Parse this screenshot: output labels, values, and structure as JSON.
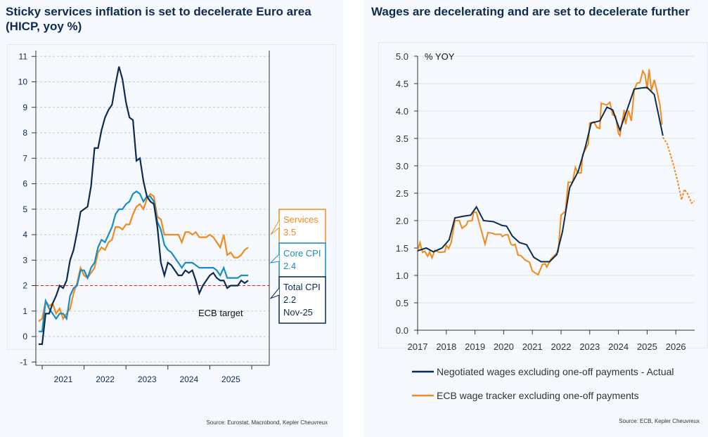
{
  "left": {
    "title": "Sticky services inflation is set to decelerate Euro area (HICP, yoy %)",
    "source": "Source: Eurostat, Macrobond,  Kepler Cheuvreux",
    "chart_data": {
      "type": "line",
      "title": "Sticky services inflation is set to decelerate Euro area (HICP, yoy %)",
      "x_start": "Nov-20",
      "x_end": "Nov-25",
      "frequency": "monthly",
      "ylim": [
        -1,
        11
      ],
      "yticks": [
        "-1",
        "0",
        "1",
        "2",
        "3",
        "4",
        "5",
        "6",
        "7",
        "8",
        "9",
        "10",
        "11"
      ],
      "xticks": [
        "2021",
        "2022",
        "2023",
        "2024",
        "2025"
      ],
      "grid": true,
      "reference_line": {
        "value": 2,
        "label": "ECB target",
        "color": "#e02020"
      },
      "series": [
        {
          "name": "Total CPI",
          "color": "#0d2b4e",
          "label": "Total CPI",
          "value_label": "2.2",
          "date_label": "Nov-25",
          "values": [
            -0.3,
            -0.3,
            0.9,
            0.9,
            1.3,
            1.6,
            2.0,
            1.9,
            2.2,
            3.0,
            3.4,
            4.1,
            4.9,
            5.0,
            5.1,
            5.9,
            7.4,
            7.4,
            8.1,
            8.6,
            8.9,
            9.1,
            9.9,
            10.6,
            10.1,
            9.2,
            8.6,
            8.5,
            6.9,
            7.0,
            6.1,
            5.5,
            5.3,
            5.2,
            4.3,
            2.9,
            2.4,
            2.9,
            2.8,
            2.6,
            2.4,
            2.4,
            2.6,
            2.5,
            2.6,
            2.2,
            1.7,
            2.0,
            2.2,
            2.4,
            2.5,
            2.3,
            2.2,
            2.2,
            1.9,
            2.0,
            2.0,
            2.0,
            2.2,
            2.1,
            2.2
          ]
        },
        {
          "name": "Core CPI",
          "color": "#1a8cc4",
          "label": "Core CPI",
          "value_label": "2.4",
          "values": [
            0.2,
            0.2,
            1.4,
            1.1,
            0.9,
            0.7,
            0.9,
            0.9,
            0.7,
            1.6,
            1.9,
            2.0,
            2.6,
            2.6,
            2.3,
            2.7,
            2.9,
            3.5,
            3.8,
            3.7,
            4.0,
            4.3,
            4.8,
            5.0,
            5.0,
            5.2,
            5.3,
            5.6,
            5.7,
            5.6,
            5.3,
            5.5,
            5.5,
            5.3,
            4.5,
            4.2,
            3.6,
            3.4,
            3.3,
            3.1,
            2.9,
            2.7,
            2.9,
            2.9,
            2.9,
            2.8,
            2.7,
            2.7,
            2.7,
            2.7,
            2.7,
            2.6,
            2.4,
            2.7,
            2.3,
            2.3,
            2.3,
            2.3,
            2.4,
            2.4,
            2.4
          ]
        },
        {
          "name": "Services",
          "color": "#f08a1c",
          "label": "Services",
          "value_label": "3.5",
          "values": [
            0.6,
            0.7,
            1.4,
            1.2,
            1.3,
            0.9,
            1.1,
            0.7,
            0.9,
            1.1,
            1.7,
            2.1,
            2.7,
            2.4,
            2.3,
            2.5,
            2.7,
            3.3,
            3.5,
            3.4,
            3.7,
            3.8,
            4.3,
            4.3,
            4.2,
            4.4,
            4.4,
            4.8,
            5.1,
            5.2,
            5.0,
            5.4,
            5.6,
            5.5,
            4.7,
            4.6,
            4.0,
            4.0,
            4.0,
            4.0,
            4.0,
            3.7,
            4.1,
            4.1,
            4.0,
            4.1,
            3.9,
            3.9,
            3.9,
            4.0,
            3.9,
            3.7,
            3.5,
            4.0,
            3.2,
            3.3,
            3.1,
            3.1,
            3.2,
            3.4,
            3.5
          ]
        }
      ]
    }
  },
  "right": {
    "title": "Wages are decelerating and are set to decelerate further",
    "source": "Source: ECB, Kepler Cheuvreux",
    "chart_data": {
      "type": "line",
      "title": "Wages are decelerating and are set to decelerate further",
      "ylabel": "% YOY",
      "ylim": [
        0,
        5
      ],
      "yticks": [
        "0.0",
        "0.5",
        "1.0",
        "1.5",
        "2.0",
        "2.5",
        "3.0",
        "3.5",
        "4.0",
        "4.5",
        "5.0"
      ],
      "xticks": [
        "2017",
        "2018",
        "2019",
        "2020",
        "2021",
        "2022",
        "2023",
        "2024",
        "2025",
        "2026"
      ],
      "xlim": [
        2017,
        2026.65
      ],
      "grid": true,
      "legend": "bottom",
      "series": [
        {
          "name": "Negotiated wages excluding one-off payments - Actual",
          "color": "#0d2b4e",
          "points": [
            [
              2017.0,
              1.45
            ],
            [
              2017.3,
              1.5
            ],
            [
              2017.55,
              1.43
            ],
            [
              2017.85,
              1.5
            ],
            [
              2018.1,
              1.65
            ],
            [
              2018.3,
              2.05
            ],
            [
              2018.6,
              2.08
            ],
            [
              2018.85,
              2.1
            ],
            [
              2019.05,
              2.25
            ],
            [
              2019.3,
              2.0
            ],
            [
              2019.65,
              1.98
            ],
            [
              2019.95,
              1.91
            ],
            [
              2020.1,
              1.9
            ],
            [
              2020.3,
              1.72
            ],
            [
              2020.55,
              1.6
            ],
            [
              2020.8,
              1.56
            ],
            [
              2021.05,
              1.33
            ],
            [
              2021.3,
              1.25
            ],
            [
              2021.6,
              1.25
            ],
            [
              2021.85,
              1.38
            ],
            [
              2022.05,
              1.8
            ],
            [
              2022.3,
              2.6
            ],
            [
              2022.6,
              2.9
            ],
            [
              2022.85,
              3.35
            ],
            [
              2023.05,
              3.78
            ],
            [
              2023.35,
              3.82
            ],
            [
              2023.6,
              4.07
            ],
            [
              2023.8,
              4.02
            ],
            [
              2024.05,
              3.65
            ],
            [
              2024.3,
              4.02
            ],
            [
              2024.55,
              4.4
            ],
            [
              2024.8,
              4.42
            ],
            [
              2025.0,
              4.43
            ],
            [
              2025.25,
              4.3
            ],
            [
              2025.55,
              3.55
            ]
          ]
        },
        {
          "name": "ECB wage tracker excluding one-off payments",
          "color": "#f08a1c",
          "points": [
            [
              2017.0,
              1.45
            ],
            [
              2017.08,
              1.6
            ],
            [
              2017.17,
              1.42
            ],
            [
              2017.25,
              1.44
            ],
            [
              2017.35,
              1.35
            ],
            [
              2017.42,
              1.43
            ],
            [
              2017.5,
              1.32
            ],
            [
              2017.6,
              1.46
            ],
            [
              2017.75,
              1.42
            ],
            [
              2017.95,
              1.43
            ],
            [
              2018.0,
              1.55
            ],
            [
              2018.08,
              1.49
            ],
            [
              2018.17,
              1.6
            ],
            [
              2018.3,
              2.0
            ],
            [
              2018.45,
              2.0
            ],
            [
              2018.55,
              1.86
            ],
            [
              2018.7,
              1.92
            ],
            [
              2018.75,
              1.99
            ],
            [
              2018.9,
              2.0
            ],
            [
              2018.95,
              2.15
            ],
            [
              2019.05,
              2.15
            ],
            [
              2019.35,
              1.57
            ],
            [
              2019.45,
              1.78
            ],
            [
              2019.6,
              1.77
            ],
            [
              2019.7,
              1.75
            ],
            [
              2019.9,
              1.75
            ],
            [
              2019.95,
              1.71
            ],
            [
              2020.05,
              1.74
            ],
            [
              2020.15,
              1.74
            ],
            [
              2020.25,
              1.57
            ],
            [
              2020.33,
              1.55
            ],
            [
              2020.4,
              1.57
            ],
            [
              2020.5,
              1.37
            ],
            [
              2020.6,
              1.36
            ],
            [
              2020.75,
              1.28
            ],
            [
              2020.9,
              1.24
            ],
            [
              2021.0,
              1.08
            ],
            [
              2021.2,
              1.01
            ],
            [
              2021.35,
              1.2
            ],
            [
              2021.45,
              1.21
            ],
            [
              2021.5,
              1.15
            ],
            [
              2021.65,
              1.3
            ],
            [
              2021.8,
              1.38
            ],
            [
              2021.9,
              1.43
            ],
            [
              2022.0,
              2.1
            ],
            [
              2022.15,
              2.17
            ],
            [
              2022.25,
              2.7
            ],
            [
              2022.4,
              2.7
            ],
            [
              2022.5,
              2.97
            ],
            [
              2022.58,
              2.87
            ],
            [
              2022.7,
              2.87
            ],
            [
              2022.75,
              3.2
            ],
            [
              2022.95,
              3.4
            ],
            [
              2023.0,
              3.78
            ],
            [
              2023.15,
              3.8
            ],
            [
              2023.25,
              3.7
            ],
            [
              2023.35,
              3.68
            ],
            [
              2023.4,
              4.14
            ],
            [
              2023.6,
              4.11
            ],
            [
              2023.7,
              4.16
            ],
            [
              2023.8,
              3.93
            ],
            [
              2023.9,
              3.91
            ],
            [
              2024.0,
              3.59
            ],
            [
              2024.05,
              3.55
            ],
            [
              2024.2,
              4.02
            ],
            [
              2024.25,
              3.76
            ],
            [
              2024.35,
              4.01
            ],
            [
              2024.45,
              3.82
            ],
            [
              2024.55,
              4.38
            ],
            [
              2024.65,
              4.51
            ],
            [
              2024.75,
              4.52
            ],
            [
              2024.85,
              4.73
            ],
            [
              2024.93,
              4.66
            ],
            [
              2025.0,
              4.4
            ],
            [
              2025.07,
              4.76
            ],
            [
              2025.15,
              4.37
            ],
            [
              2025.25,
              4.57
            ],
            [
              2025.35,
              4.35
            ],
            [
              2025.45,
              4.1
            ],
            [
              2025.52,
              3.75
            ]
          ]
        },
        {
          "name": "ECB wage tracker forecast",
          "color": "#f08a1c",
          "dashed": true,
          "points": [
            [
              2025.55,
              3.52
            ],
            [
              2025.7,
              3.4
            ],
            [
              2025.9,
              3.05
            ],
            [
              2026.05,
              2.75
            ],
            [
              2026.2,
              2.38
            ],
            [
              2026.3,
              2.57
            ],
            [
              2026.4,
              2.5
            ],
            [
              2026.55,
              2.32
            ],
            [
              2026.65,
              2.36
            ]
          ]
        }
      ]
    }
  }
}
